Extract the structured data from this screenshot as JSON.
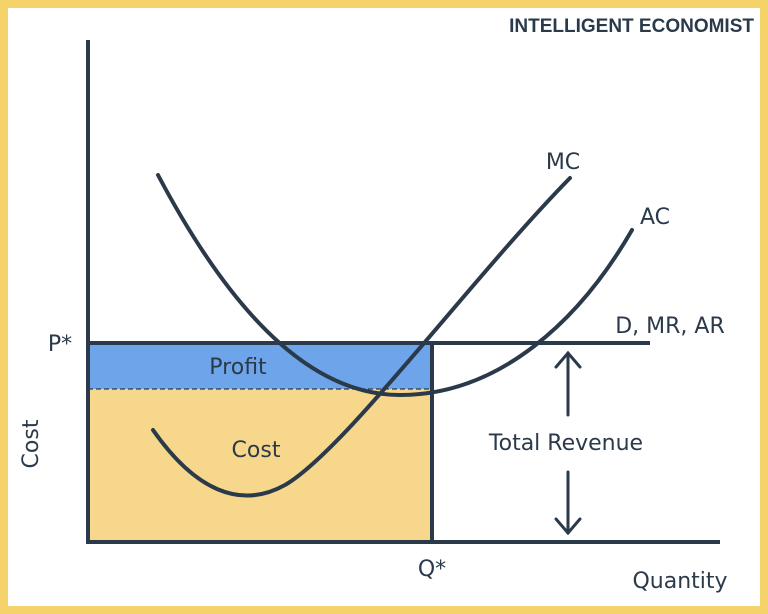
{
  "brand": "INTELLIGENT ECONOMIST",
  "curves": {
    "mc": "MC",
    "ac": "AC",
    "demand": "D, MR, AR"
  },
  "axes": {
    "y_label": "Cost",
    "x_label": "Quantity",
    "price": "P*",
    "quantity": "Q*"
  },
  "regions": {
    "profit": "Profit",
    "cost": "Cost",
    "total_revenue": "Total Revenue"
  }
}
